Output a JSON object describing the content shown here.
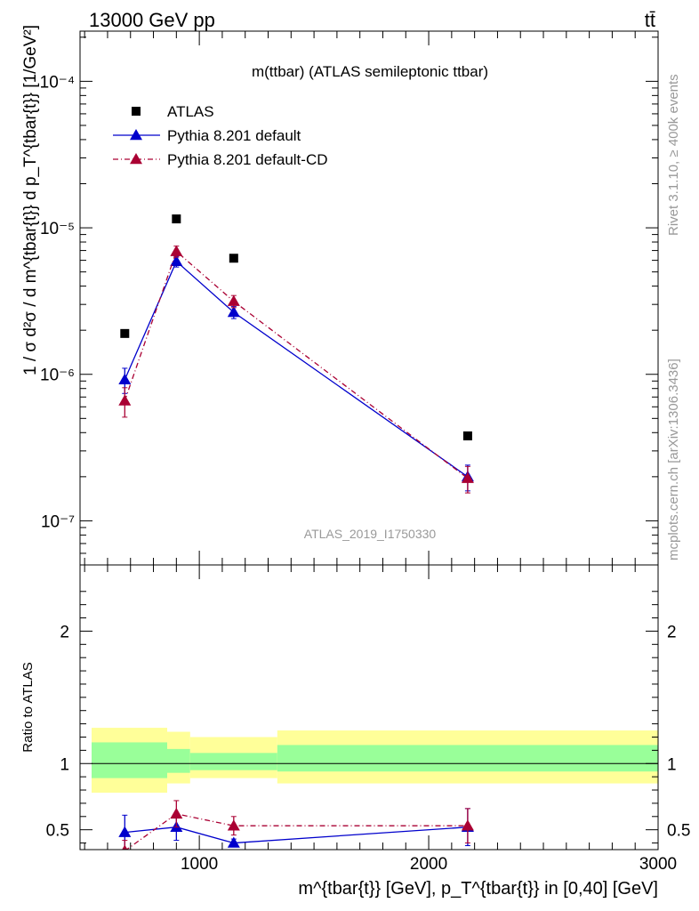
{
  "header": {
    "process": "13000 GeV pp",
    "channel": "tt̄"
  },
  "side_labels": {
    "rivet": "Rivet 3.1.10, ≥ 400k events",
    "source": "mcplots.cern.ch [arXiv:1306.3436]"
  },
  "chart_data": [
    {
      "type": "scatter",
      "panel": "main",
      "title": "m(ttbar) (ATLAS semileptonic ttbar)",
      "analysis": "ATLAS_2019_I1750330",
      "ylabel": "1 / σ d²σ / d m^{tbar{t}} d p_T^{tbar{t}} [1/GeV²]",
      "yscale": "log",
      "ylim": [
        5e-08,
        0.00022
      ],
      "xlim": [
        480,
        3000
      ],
      "y_ticks": [
        "10⁻⁷",
        "10⁻⁶",
        "10⁻⁵",
        "10⁻⁴"
      ],
      "legend_position": "top-left",
      "series": [
        {
          "name": "ATLAS",
          "color": "#000000",
          "marker": "square",
          "points": [
            {
              "x": 675,
              "y": 1.9e-06
            },
            {
              "x": 900,
              "y": 1.15e-05
            },
            {
              "x": 1150,
              "y": 6.2e-06
            },
            {
              "x": 2170,
              "y": 3.8e-07
            }
          ]
        },
        {
          "name": "Pythia 8.201 default",
          "color": "#0000cc",
          "marker": "triangle",
          "line": "solid",
          "points": [
            {
              "x": 675,
              "y": 9.2e-07,
              "err": [
                1.8e-07,
                1.8e-07
              ]
            },
            {
              "x": 900,
              "y": 5.9e-06,
              "err": [
                5e-07,
                5e-07
              ]
            },
            {
              "x": 1150,
              "y": 2.65e-06,
              "err": [
                2.5e-07,
                2.5e-07
              ]
            },
            {
              "x": 2170,
              "y": 2e-07,
              "err": [
                4e-08,
                4e-08
              ]
            }
          ]
        },
        {
          "name": "Pythia 8.201 default-CD",
          "color": "#aa0033",
          "marker": "triangle",
          "line": "dashdot",
          "points": [
            {
              "x": 675,
              "y": 6.6e-07,
              "err": [
                1.5e-07,
                1.5e-07
              ]
            },
            {
              "x": 900,
              "y": 6.9e-06,
              "err": [
                6e-07,
                6e-07
              ]
            },
            {
              "x": 1150,
              "y": 3.15e-06,
              "err": [
                3e-07,
                3e-07
              ]
            },
            {
              "x": 2170,
              "y": 1.95e-07,
              "err": [
                4e-08,
                4e-08
              ]
            }
          ]
        }
      ]
    },
    {
      "type": "scatter",
      "panel": "ratio",
      "ylabel": "Ratio to ATLAS",
      "xlabel": "m^{tbar{t}} [GeV], p_T^{tbar{t}} in [0,40] [GeV]",
      "xlim": [
        480,
        3000
      ],
      "ylim": [
        0.35,
        2.5
      ],
      "x_ticks": [
        1000,
        2000,
        3000
      ],
      "y_ticks": [
        "0.5",
        "1",
        "2"
      ],
      "bands": [
        {
          "x0": 480,
          "x1": 860,
          "inner": [
            0.89,
            1.16
          ],
          "outer": [
            0.78,
            1.27
          ]
        },
        {
          "x0": 860,
          "x1": 960,
          "inner": [
            0.93,
            1.11
          ],
          "outer": [
            0.85,
            1.24
          ]
        },
        {
          "x0": 960,
          "x1": 1340,
          "inner": [
            0.95,
            1.08
          ],
          "outer": [
            0.89,
            1.2
          ]
        },
        {
          "x0": 1340,
          "x1": 3000,
          "inner": [
            0.94,
            1.14
          ],
          "outer": [
            0.85,
            1.25
          ]
        }
      ],
      "band_colors": {
        "inner": "#99ff99",
        "outer": "#ffff99"
      },
      "series": [
        {
          "name": "Pythia 8.201 default",
          "color": "#0000cc",
          "line": "solid",
          "points": [
            {
              "x": 675,
              "y": 0.48,
              "err": [
                0.15,
                0.13
              ]
            },
            {
              "x": 900,
              "y": 0.52,
              "err": [
                0.1,
                0.1
              ]
            },
            {
              "x": 1150,
              "y": 0.4,
              "err": [
                0.03,
                0.03
              ]
            },
            {
              "x": 2170,
              "y": 0.52,
              "err": [
                0.14,
                0.14
              ]
            }
          ]
        },
        {
          "name": "Pythia 8.201 default-CD",
          "color": "#aa0033",
          "line": "dashdot",
          "points": [
            {
              "x": 675,
              "y": 0.34,
              "err": [
                0.08,
                0.08
              ]
            },
            {
              "x": 900,
              "y": 0.62,
              "err": [
                0.1,
                0.1
              ]
            },
            {
              "x": 1150,
              "y": 0.53,
              "err": [
                0.07,
                0.07
              ]
            },
            {
              "x": 2170,
              "y": 0.53,
              "err": [
                0.13,
                0.13
              ]
            }
          ]
        }
      ]
    }
  ]
}
